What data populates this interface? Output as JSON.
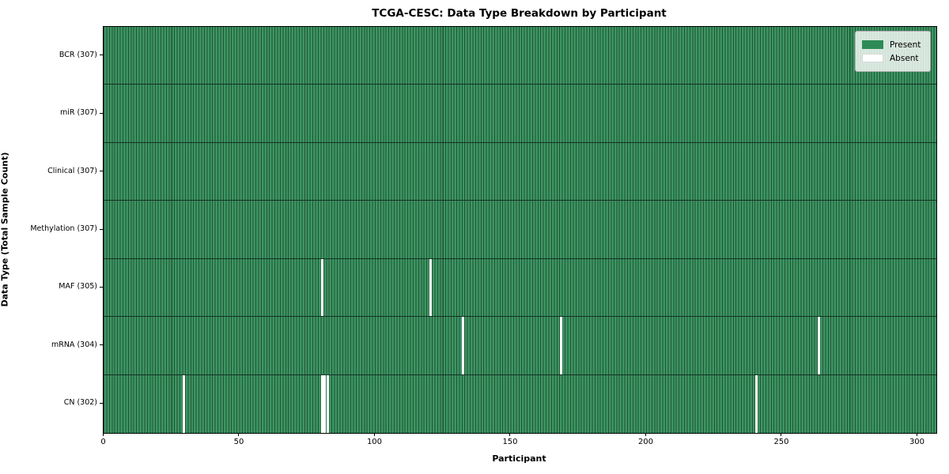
{
  "title": "TCGA-CESC: Data Type Breakdown by Participant",
  "xlabel": "Participant",
  "ylabel": "Data Type (Total Sample Count)",
  "legend": {
    "present_label": "Present",
    "absent_label": "Absent"
  },
  "colors": {
    "present_fill": "#3c9664",
    "cell_edge": "#225233",
    "row_divider": "#143022",
    "absent_fill": "#ffffff",
    "legend_present_swatch": "#2e8b57",
    "legend_absent_swatch": "#ffffff",
    "frame": "#000000"
  },
  "chart_data": {
    "type": "heatmap",
    "title": "TCGA-CESC: Data Type Breakdown by Participant",
    "xlabel": "Participant",
    "ylabel": "Data Type (Total Sample Count)",
    "legend_entries": [
      {
        "label": "Present",
        "color": "#2e8b57"
      },
      {
        "label": "Absent",
        "color": "#ffffff"
      }
    ],
    "legend_position": "upper right",
    "grid": false,
    "n_participants": 307,
    "xlim": [
      0,
      307
    ],
    "x_ticks": [
      0,
      50,
      100,
      150,
      200,
      250,
      300
    ],
    "rows": [
      {
        "data_type": "BCR",
        "label": "BCR (307)",
        "total_samples": 307,
        "absent_participants": []
      },
      {
        "data_type": "miR",
        "label": "miR (307)",
        "total_samples": 307,
        "absent_participants": []
      },
      {
        "data_type": "Clinical",
        "label": "Clinical (307)",
        "total_samples": 307,
        "absent_participants": []
      },
      {
        "data_type": "Methylation",
        "label": "Methylation (307)",
        "total_samples": 307,
        "absent_participants": []
      },
      {
        "data_type": "MAF",
        "label": "MAF (305)",
        "total_samples": 305,
        "absent_participants": [
          80,
          120
        ]
      },
      {
        "data_type": "mRNA",
        "label": "mRNA (304)",
        "total_samples": 304,
        "absent_participants": [
          132,
          168,
          263
        ]
      },
      {
        "data_type": "CN",
        "label": "CN (302)",
        "total_samples": 302,
        "absent_participants": [
          29,
          80,
          81,
          82,
          240
        ]
      }
    ]
  }
}
